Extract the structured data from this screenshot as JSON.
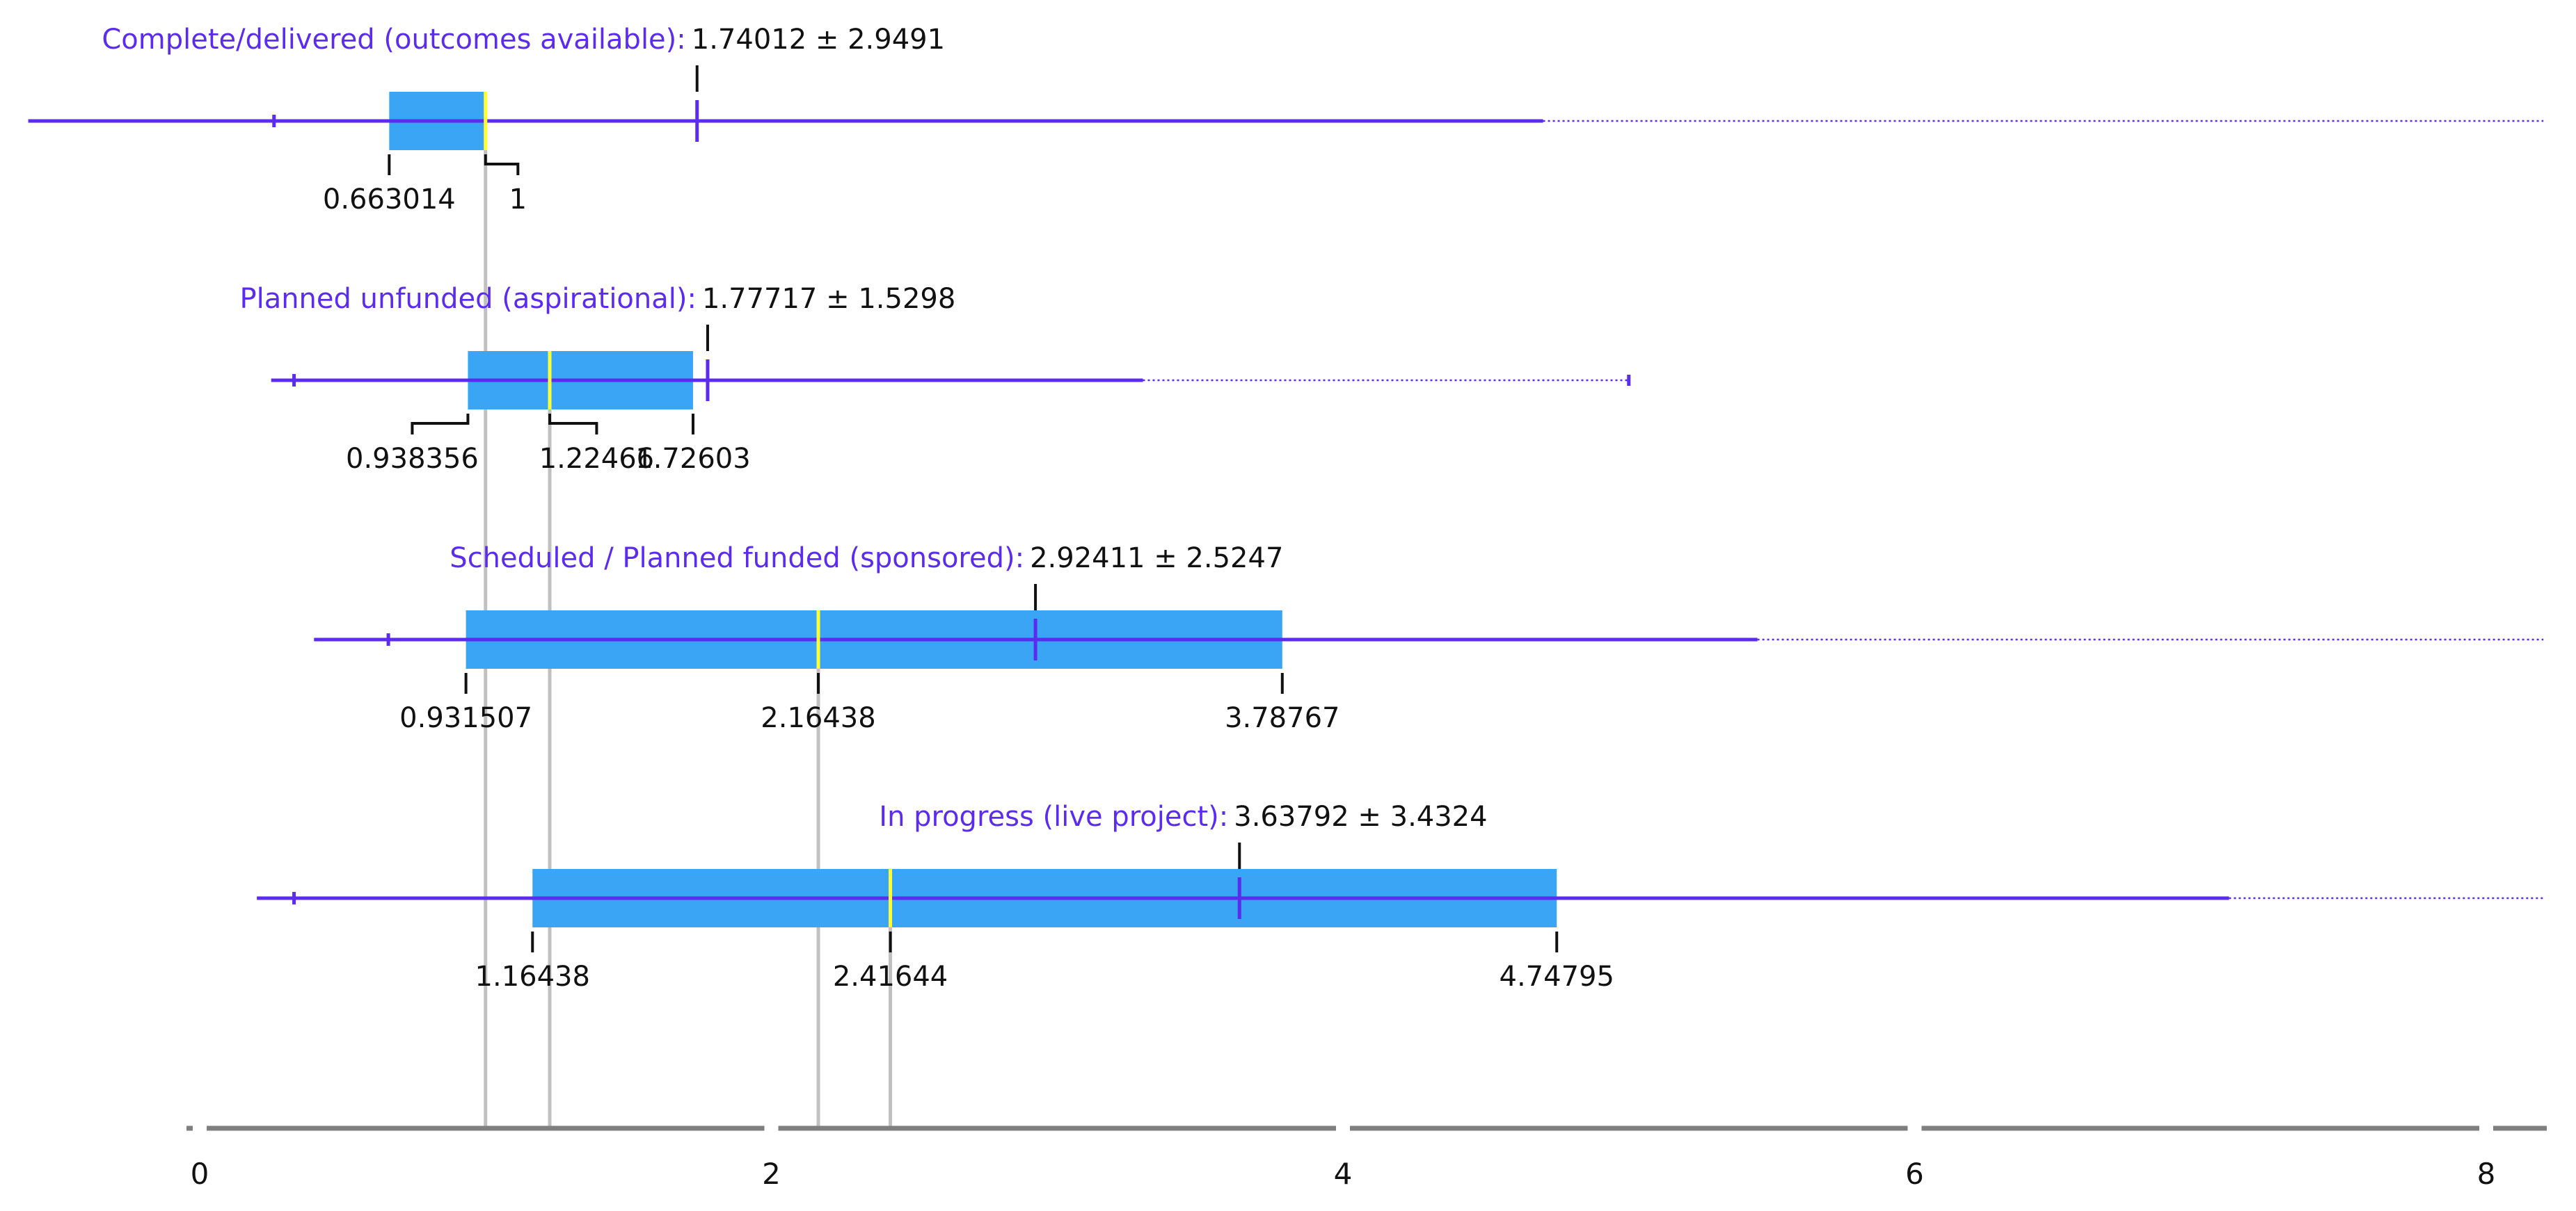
{
  "chart_data": {
    "type": "boxplot",
    "xlim": [
      0,
      8
    ],
    "x_ticks": [
      0,
      2,
      4,
      6,
      8
    ],
    "x_tick_labels": [
      "0",
      "2",
      "4",
      "6",
      "8"
    ],
    "grid": false,
    "colors": {
      "box": "#3aa5f5",
      "line": "#5b2cf0",
      "median": "#ffff33",
      "guide": "#c0c0c0",
      "axis": "#7f7f7f",
      "label": "#111111"
    },
    "rows": [
      {
        "title": "Complete/delivered (outcomes available):",
        "stat": "1.74012 ± 2.9491",
        "mean": 1.74012,
        "whisker_low": -0.6,
        "low_tick": 0.26,
        "q1": 0.663014,
        "median": 1.0,
        "q3": 1.0,
        "whisker_high": 4.7,
        "max": 8.2,
        "max_marker": false,
        "labels": [
          {
            "text": "0.663014",
            "value": 0.663014
          },
          {
            "text": "1",
            "value": 1.0
          }
        ]
      },
      {
        "title": "Planned unfunded (aspirational):",
        "stat": "1.77717 ± 1.5298",
        "mean": 1.77717,
        "whisker_low": 0.25,
        "low_tick": 0.33,
        "q1": 0.938356,
        "median": 1.22466,
        "q3": 1.72603,
        "whisker_high": 3.3,
        "max": 5.0,
        "max_marker": true,
        "labels": [
          {
            "text": "0.938356",
            "value": 0.938356
          },
          {
            "text": "1.22466",
            "value": 1.22466
          },
          {
            "text": "1.72603",
            "value": 1.72603
          }
        ]
      },
      {
        "title": "Scheduled / Planned funded (sponsored):",
        "stat": "2.92411 ± 2.5247",
        "mean": 2.92411,
        "whisker_low": 0.4,
        "low_tick": 0.66,
        "q1": 0.931507,
        "median": 2.16438,
        "q3": 3.78767,
        "whisker_high": 5.45,
        "max": 8.2,
        "max_marker": false,
        "labels": [
          {
            "text": "0.931507",
            "value": 0.931507
          },
          {
            "text": "2.16438",
            "value": 2.16438
          },
          {
            "text": "3.78767",
            "value": 3.78767
          }
        ]
      },
      {
        "title": "In progress (live project):",
        "stat": "3.63792 ± 3.4324",
        "mean": 3.63792,
        "whisker_low": 0.2,
        "low_tick": 0.33,
        "q1": 1.16438,
        "median": 2.41644,
        "q3": 4.74795,
        "whisker_high": 7.1,
        "max": 8.2,
        "max_marker": false,
        "labels": [
          {
            "text": "1.16438",
            "value": 1.16438
          },
          {
            "text": "2.41644",
            "value": 2.41644
          },
          {
            "text": "4.74795",
            "value": 4.74795
          }
        ]
      }
    ]
  }
}
